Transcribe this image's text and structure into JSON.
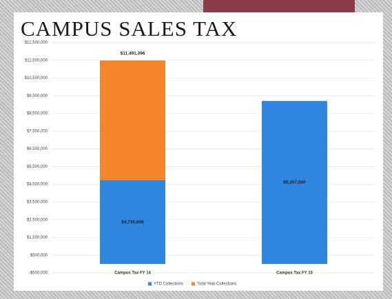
{
  "chart_data": {
    "type": "stacked_bar",
    "title": "CAMPUS SALES TAX",
    "categories": [
      "Campus Tax FY 14",
      "Campus Tax FY 15"
    ],
    "series": [
      {
        "name": "YTD Collections",
        "color": "#2e86de",
        "values": [
          4735608,
          9207560
        ],
        "value_labels": [
          "$4,735,608",
          "$9,207,560"
        ]
      },
      {
        "name": "Total Year Collections",
        "color": "#f5852a",
        "values": [
          6755788,
          null
        ]
      }
    ],
    "totals": [
      11491396,
      null
    ],
    "total_labels": [
      "$11,491,396",
      null
    ],
    "ylim": [
      -500000,
      12500000
    ],
    "yticks": [
      {
        "value": -500000,
        "label": "-$500,000"
      },
      {
        "value": 500000,
        "label": "$500,000"
      },
      {
        "value": 1500000,
        "label": "$1,500,000"
      },
      {
        "value": 2500000,
        "label": "$2,500,000"
      },
      {
        "value": 3500000,
        "label": "$3,500,000"
      },
      {
        "value": 4500000,
        "label": "$4,500,000"
      },
      {
        "value": 5500000,
        "label": "$5,500,000"
      },
      {
        "value": 6500000,
        "label": "$6,500,000"
      },
      {
        "value": 7500000,
        "label": "$7,500,000"
      },
      {
        "value": 8500000,
        "label": "$8,500,000"
      },
      {
        "value": 9500000,
        "label": "$9,500,000"
      },
      {
        "value": 10500000,
        "label": "$10,500,000"
      },
      {
        "value": 11500000,
        "label": "$11,500,000"
      },
      {
        "value": 12500000,
        "label": "$12,500,000"
      }
    ],
    "grid": true,
    "legend": "bottom"
  }
}
